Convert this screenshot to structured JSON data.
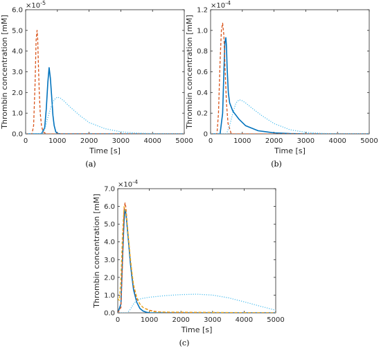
{
  "figure": {
    "panels": [
      {
        "caption": "(a)",
        "xlabel": "Time [s]",
        "ylabel": "Thrombin concentration [mM]",
        "exponent_base": "×10",
        "exponent_power": "-5"
      },
      {
        "caption": "(b)",
        "xlabel": "Time [s]",
        "ylabel": "Thrombin concentration [mM]",
        "exponent_base": "×10",
        "exponent_power": "-4"
      },
      {
        "caption": "(c)",
        "xlabel": "Time [s]",
        "ylabel": "Thrombin concentration [mM]",
        "exponent_base": "×10",
        "exponent_power": "-4"
      }
    ]
  },
  "chart_data": [
    {
      "type": "line",
      "caption": "(a)",
      "xlabel": "Time [s]",
      "ylabel": "Thrombin concentration [mM]",
      "y_scale_multiplier": "1e-5",
      "xlim": [
        0,
        5000
      ],
      "ylim": [
        0,
        6.0
      ],
      "xticks": [
        "0",
        "1000",
        "2000",
        "3000",
        "4000",
        "5000"
      ],
      "yticks": [
        "0.0",
        "1.0",
        "2.0",
        "3.0",
        "4.0",
        "5.0",
        "6.0"
      ],
      "grid": false,
      "series": [
        {
          "color": "#0072BD",
          "style": "solid",
          "x": [
            0,
            500,
            600,
            650,
            700,
            740,
            780,
            820,
            860,
            900,
            950,
            1000,
            1100,
            5000
          ],
          "y": [
            0,
            0,
            0.3,
            1.2,
            2.5,
            3.2,
            2.7,
            1.8,
            0.9,
            0.4,
            0.1,
            0.02,
            0,
            0
          ]
        },
        {
          "color": "#D95319",
          "style": "dashed",
          "x": [
            0,
            200,
            250,
            300,
            330,
            360,
            380,
            400,
            430,
            460,
            500,
            550,
            650,
            5000
          ],
          "y": [
            0,
            0,
            0.4,
            2.5,
            4.5,
            5.0,
            4.6,
            3.5,
            2.0,
            1.0,
            0.4,
            0.1,
            0,
            0
          ]
        },
        {
          "color": "#4DBEEE",
          "style": "dotted",
          "x": [
            0,
            500,
            600,
            700,
            800,
            900,
            1000,
            1100,
            1200,
            1400,
            1700,
            2000,
            2500,
            3000,
            3500,
            4000,
            4500,
            5000
          ],
          "y": [
            0,
            0,
            0.2,
            0.8,
            1.3,
            1.65,
            1.78,
            1.72,
            1.6,
            1.3,
            0.9,
            0.55,
            0.25,
            0.1,
            0.04,
            0.01,
            0,
            0
          ]
        }
      ]
    },
    {
      "type": "line",
      "caption": "(b)",
      "xlabel": "Time [s]",
      "ylabel": "Thrombin concentration [mM]",
      "y_scale_multiplier": "1e-4",
      "xlim": [
        0,
        5000
      ],
      "ylim": [
        0,
        1.2
      ],
      "xticks": [
        "0",
        "1000",
        "2000",
        "3000",
        "4000",
        "5000"
      ],
      "yticks": [
        "0",
        "0.2",
        "0.4",
        "0.6",
        "0.8",
        "1.0",
        "1.2"
      ],
      "grid": false,
      "series": [
        {
          "color": "#0072BD",
          "style": "solid",
          "x": [
            0,
            300,
            380,
            420,
            450,
            480,
            500,
            520,
            560,
            600,
            700,
            900,
            1100,
            1500,
            2000,
            2500,
            3000,
            5000
          ],
          "y": [
            0,
            0,
            0.2,
            0.6,
            0.88,
            0.93,
            0.85,
            0.65,
            0.4,
            0.3,
            0.22,
            0.14,
            0.08,
            0.03,
            0.01,
            0.003,
            0,
            0
          ]
        },
        {
          "color": "#D95319",
          "style": "dashed",
          "x": [
            0,
            200,
            250,
            300,
            340,
            380,
            420,
            460,
            500,
            550,
            650,
            5000
          ],
          "y": [
            0,
            0,
            0.2,
            0.7,
            1.0,
            1.07,
            0.95,
            0.6,
            0.3,
            0.1,
            0,
            0
          ]
        },
        {
          "color": "#4DBEEE",
          "style": "dotted",
          "x": [
            0,
            500,
            600,
            700,
            800,
            900,
            1000,
            1100,
            1300,
            1600,
            2000,
            2500,
            3000,
            3500,
            4000,
            5000
          ],
          "y": [
            0,
            0,
            0.08,
            0.2,
            0.3,
            0.33,
            0.32,
            0.3,
            0.25,
            0.18,
            0.1,
            0.04,
            0.015,
            0.005,
            0,
            0
          ]
        }
      ]
    },
    {
      "type": "line",
      "caption": "(c)",
      "xlabel": "Time [s]",
      "ylabel": "Thrombin concentration [mM]",
      "y_scale_multiplier": "1e-4",
      "xlim": [
        0,
        5000
      ],
      "ylim": [
        0,
        7.0
      ],
      "xticks": [
        "0",
        "1000",
        "2000",
        "3000",
        "4000",
        "5000"
      ],
      "yticks": [
        "0.0",
        "1.0",
        "2.0",
        "3.0",
        "4.0",
        "5.0",
        "6.0",
        "7.0"
      ],
      "grid": false,
      "series": [
        {
          "color": "#0072BD",
          "style": "solid",
          "x": [
            0,
            100,
            150,
            200,
            230,
            260,
            300,
            350,
            400,
            450,
            500,
            600,
            700,
            800,
            900,
            1000,
            5000
          ],
          "y": [
            0,
            0.5,
            3.0,
            5.2,
            5.8,
            5.6,
            4.8,
            3.8,
            2.8,
            2.0,
            1.3,
            0.6,
            0.25,
            0.1,
            0.04,
            0,
            0
          ]
        },
        {
          "color": "#D95319",
          "style": "dashed",
          "x": [
            0,
            100,
            150,
            200,
            230,
            260,
            300,
            350,
            400,
            450,
            500,
            600,
            700,
            800,
            1000,
            1200,
            1500,
            5000
          ],
          "y": [
            0,
            0.3,
            2.8,
            5.8,
            6.2,
            5.9,
            5.0,
            4.0,
            3.0,
            2.2,
            1.5,
            0.8,
            0.5,
            0.3,
            0.15,
            0.08,
            0.03,
            0
          ]
        },
        {
          "color": "#EDB120",
          "style": "dashed",
          "x": [
            0,
            50,
            100,
            150,
            200,
            250,
            300,
            350,
            400,
            450,
            500,
            600,
            700,
            800,
            1000,
            1200,
            5000
          ],
          "y": [
            0.8,
            0.7,
            2.0,
            4.5,
            6.0,
            5.8,
            5.0,
            4.0,
            3.1,
            2.3,
            1.6,
            0.9,
            0.5,
            0.3,
            0.12,
            0.05,
            0
          ]
        },
        {
          "color": "#4DBEEE",
          "style": "dotted",
          "x": [
            0,
            300,
            400,
            500,
            600,
            700,
            800,
            1000,
            1500,
            2000,
            2500,
            3000,
            3500,
            4000,
            4500,
            5000
          ],
          "y": [
            0,
            0,
            0.2,
            0.5,
            0.7,
            0.78,
            0.82,
            0.88,
            0.97,
            1.03,
            1.05,
            1.0,
            0.85,
            0.62,
            0.38,
            0.15
          ]
        }
      ]
    }
  ]
}
